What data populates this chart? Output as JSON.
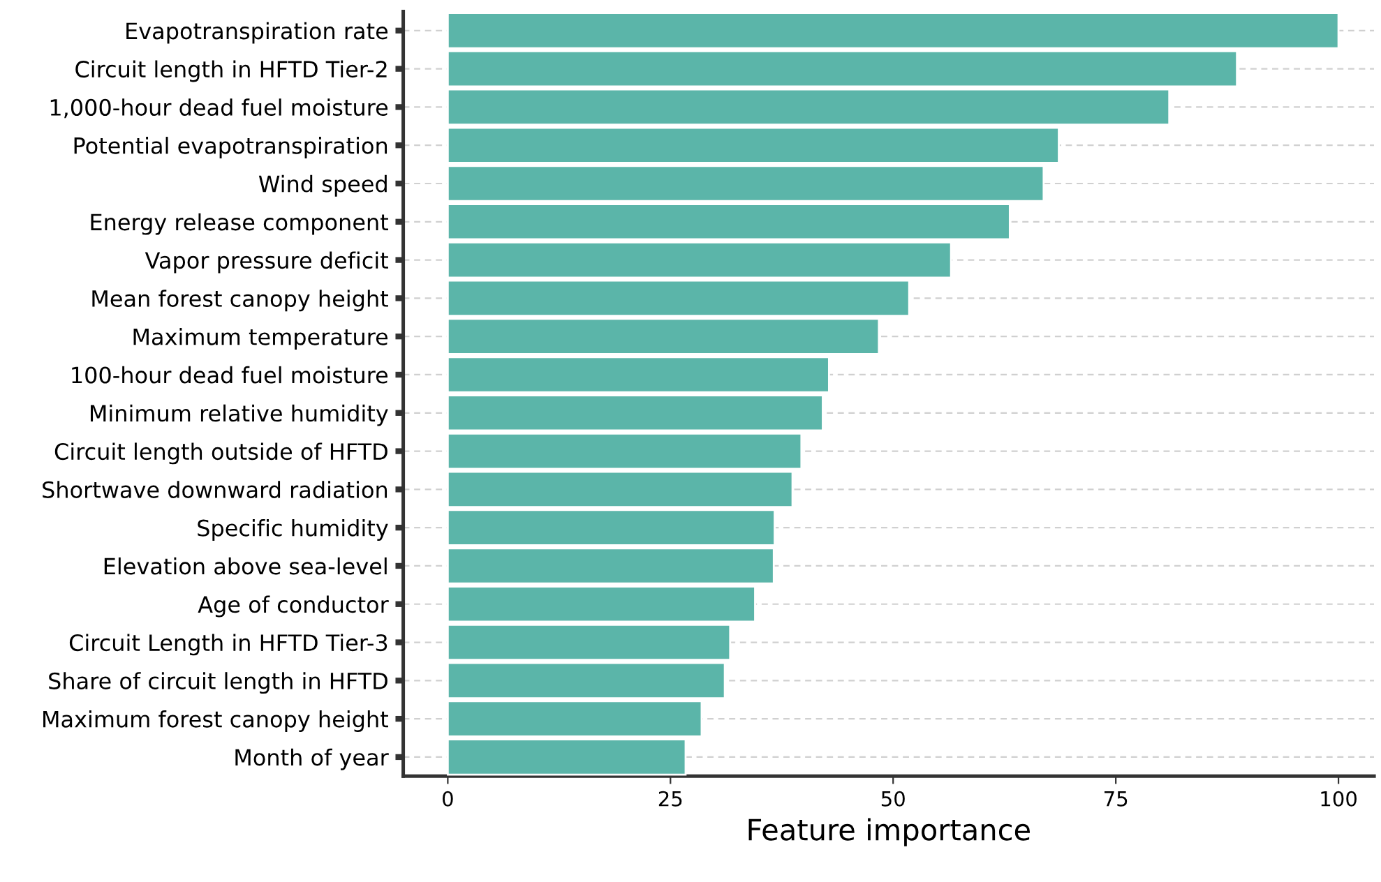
{
  "chart_data": {
    "type": "bar",
    "orientation": "horizontal",
    "xlabel": "Feature importance",
    "categories": [
      "Evapotranspiration rate",
      "Circuit length in HFTD Tier-2",
      "1,000-hour dead fuel moisture",
      "Potential evapotranspiration",
      "Wind speed",
      "Energy release component",
      "Vapor pressure deficit",
      "Mean forest canopy height",
      "Maximum temperature",
      "100-hour dead fuel moisture",
      "Minimum relative humidity",
      "Circuit length outside of HFTD",
      "Shortwave downward radiation",
      "Specific humidity",
      "Elevation above sea-level",
      "Age of conductor",
      "Circuit Length in HFTD Tier-3",
      "Share of circuit length in HFTD",
      "Maximum forest canopy height",
      "Month of year"
    ],
    "values": [
      100,
      88.6,
      81.0,
      68.6,
      66.9,
      63.1,
      56.5,
      51.8,
      48.4,
      42.8,
      42.1,
      39.7,
      38.7,
      36.7,
      36.6,
      34.5,
      31.7,
      31.1,
      28.5,
      26.7
    ],
    "color": "#5bb5a9",
    "xlim": [
      -5,
      104
    ],
    "xticks": [
      0,
      25,
      50,
      75,
      100
    ],
    "grid": "y",
    "legend": false
  }
}
